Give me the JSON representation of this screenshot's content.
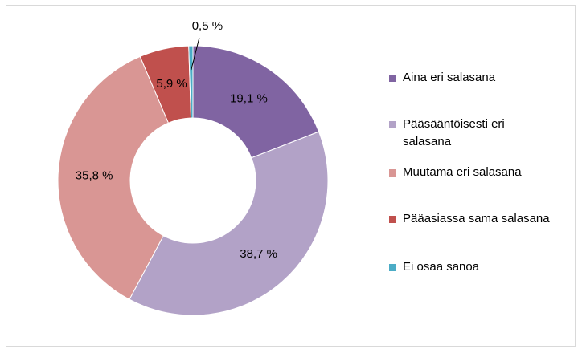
{
  "chart_data": {
    "type": "donut",
    "categories": [
      "Aina eri salasana",
      "Pääsääntöisesti eri salasana",
      "Muutama eri salasana",
      "Pääasiassa sama salasana",
      "Ei osaa sanoa"
    ],
    "values": [
      19.1,
      38.7,
      35.8,
      5.9,
      0.5
    ],
    "value_labels": [
      "19,1 %",
      "38,7 %",
      "35,8 %",
      "5,9 %",
      "0,5 %"
    ],
    "colors": [
      "#8064a2",
      "#b2a2c7",
      "#d99694",
      "#c0504d",
      "#4bacc6"
    ],
    "legend": "right"
  }
}
